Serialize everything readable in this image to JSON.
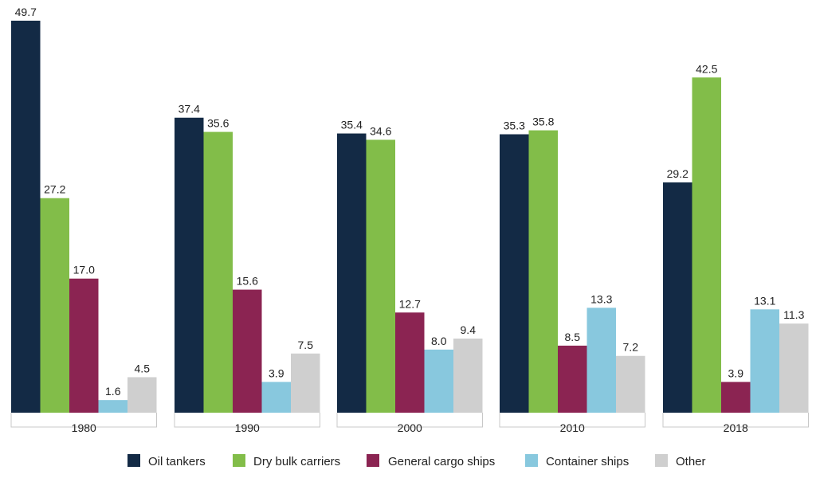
{
  "chart_data": {
    "type": "bar",
    "title": "",
    "xlabel": "",
    "ylabel": "",
    "ylim": [
      0,
      50
    ],
    "grid": false,
    "legend_position": "bottom",
    "categories": [
      "1980",
      "1990",
      "2000",
      "2010",
      "2018"
    ],
    "series": [
      {
        "name": "Oil tankers",
        "color": "#132a45",
        "values": [
          49.7,
          37.4,
          35.4,
          35.3,
          29.2
        ],
        "labels": [
          "49.7",
          "37.4",
          "35.4",
          "35.3",
          "29.2"
        ]
      },
      {
        "name": "Dry bulk carriers",
        "color": "#82bd49",
        "values": [
          27.2,
          35.6,
          34.6,
          35.8,
          42.5
        ],
        "labels": [
          "27.2",
          "35.6",
          "34.6",
          "35.8",
          "42.5"
        ]
      },
      {
        "name": "General cargo ships",
        "color": "#8b2452",
        "values": [
          17.0,
          15.6,
          12.7,
          8.5,
          3.9
        ],
        "labels": [
          "17.0",
          "15.6",
          "12.7",
          "8.5",
          "3.9"
        ]
      },
      {
        "name": "Container ships",
        "color": "#88c8de",
        "values": [
          1.6,
          3.9,
          8.0,
          13.3,
          13.1
        ],
        "labels": [
          "1.6",
          "3.9",
          "8.0",
          "13.3",
          "13.1"
        ]
      },
      {
        "name": "Other",
        "color": "#cfcfcf",
        "values": [
          4.5,
          7.5,
          9.4,
          7.2,
          11.3
        ],
        "labels": [
          "4.5",
          "7.5",
          "9.4",
          "7.2",
          "11.3"
        ]
      }
    ]
  }
}
